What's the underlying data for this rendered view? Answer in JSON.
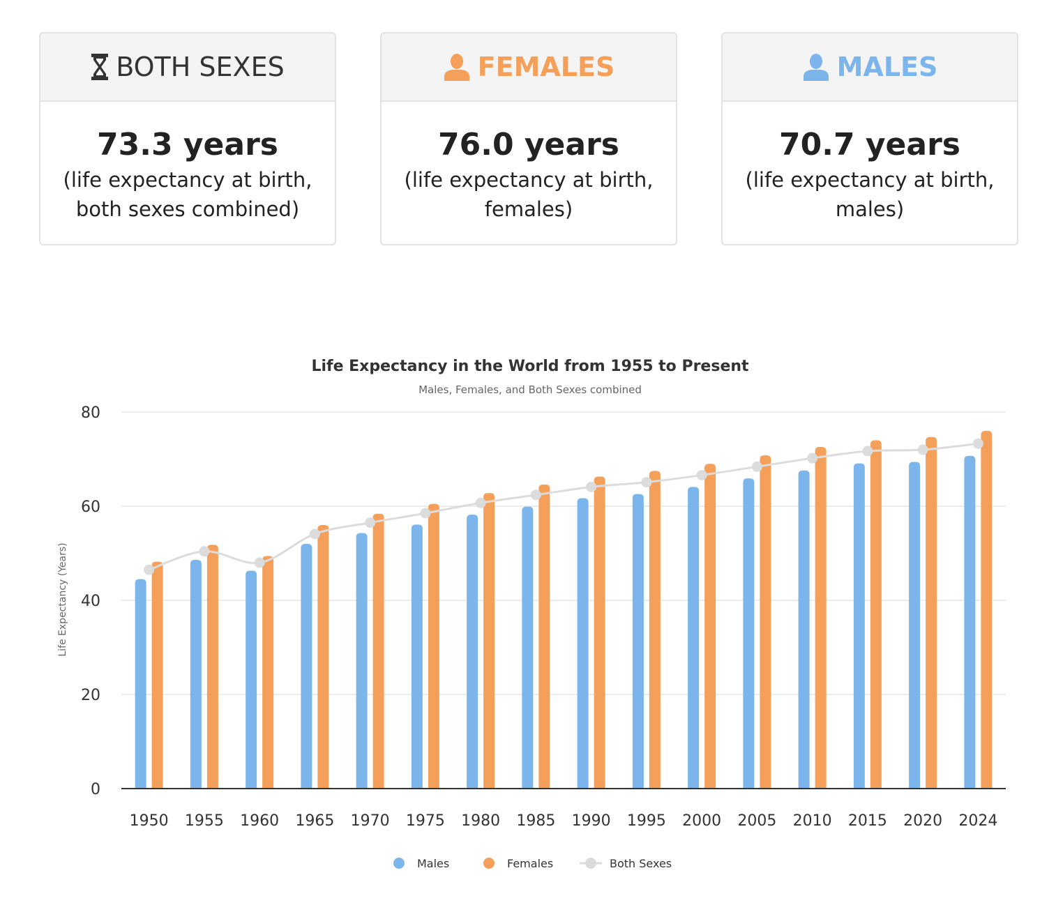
{
  "cards": [
    {
      "title": "BOTH SEXES",
      "value": "73.3 years",
      "desc_line1": "(life expectancy at birth,",
      "desc_line2": "both sexes combined)",
      "color": "#333333",
      "icon": "hourglass-icon"
    },
    {
      "title": "FEMALES",
      "value": "76.0 years",
      "desc_line1": "(life expectancy at birth,",
      "desc_line2": "females)",
      "color": "#f4a05a",
      "icon": "person-icon"
    },
    {
      "title": "MALES",
      "value": "70.7 years",
      "desc_line1": "(life expectancy at birth,",
      "desc_line2": "males)",
      "color": "#7cb5ec",
      "icon": "person-icon"
    }
  ],
  "chart_data": {
    "type": "bar",
    "title": "Life Expectancy in the World from 1955 to Present",
    "subtitle": "Males, Females, and Both Sexes combined",
    "ylabel": "Life Expectancy (Years)",
    "xlabel": "",
    "ylim": [
      0,
      80
    ],
    "yticks": [
      0,
      20,
      40,
      60,
      80
    ],
    "grid": true,
    "legend_position": "bottom-center",
    "categories": [
      "1950",
      "1955",
      "1960",
      "1965",
      "1970",
      "1975",
      "1980",
      "1985",
      "1990",
      "1995",
      "2000",
      "2005",
      "2010",
      "2015",
      "2020",
      "2024"
    ],
    "series": [
      {
        "name": "Males",
        "type": "bar",
        "color": "#7cb5ec",
        "values": [
          44.5,
          48.6,
          46.3,
          52.0,
          54.3,
          56.1,
          58.2,
          59.9,
          61.7,
          62.6,
          64.1,
          65.9,
          67.6,
          69.1,
          69.4,
          70.7
        ]
      },
      {
        "name": "Females",
        "type": "bar",
        "color": "#f4a05a",
        "values": [
          48.2,
          51.8,
          49.4,
          56.0,
          58.4,
          60.5,
          62.8,
          64.6,
          66.3,
          67.5,
          69.0,
          70.8,
          72.6,
          74.0,
          74.7,
          76.0
        ]
      },
      {
        "name": "Both Sexes",
        "type": "line",
        "color": "#dcdcdc",
        "values": [
          46.5,
          50.4,
          48.0,
          54.1,
          56.5,
          58.5,
          60.7,
          62.4,
          64.1,
          65.1,
          66.6,
          68.4,
          70.2,
          71.7,
          72.0,
          73.3
        ]
      }
    ]
  }
}
